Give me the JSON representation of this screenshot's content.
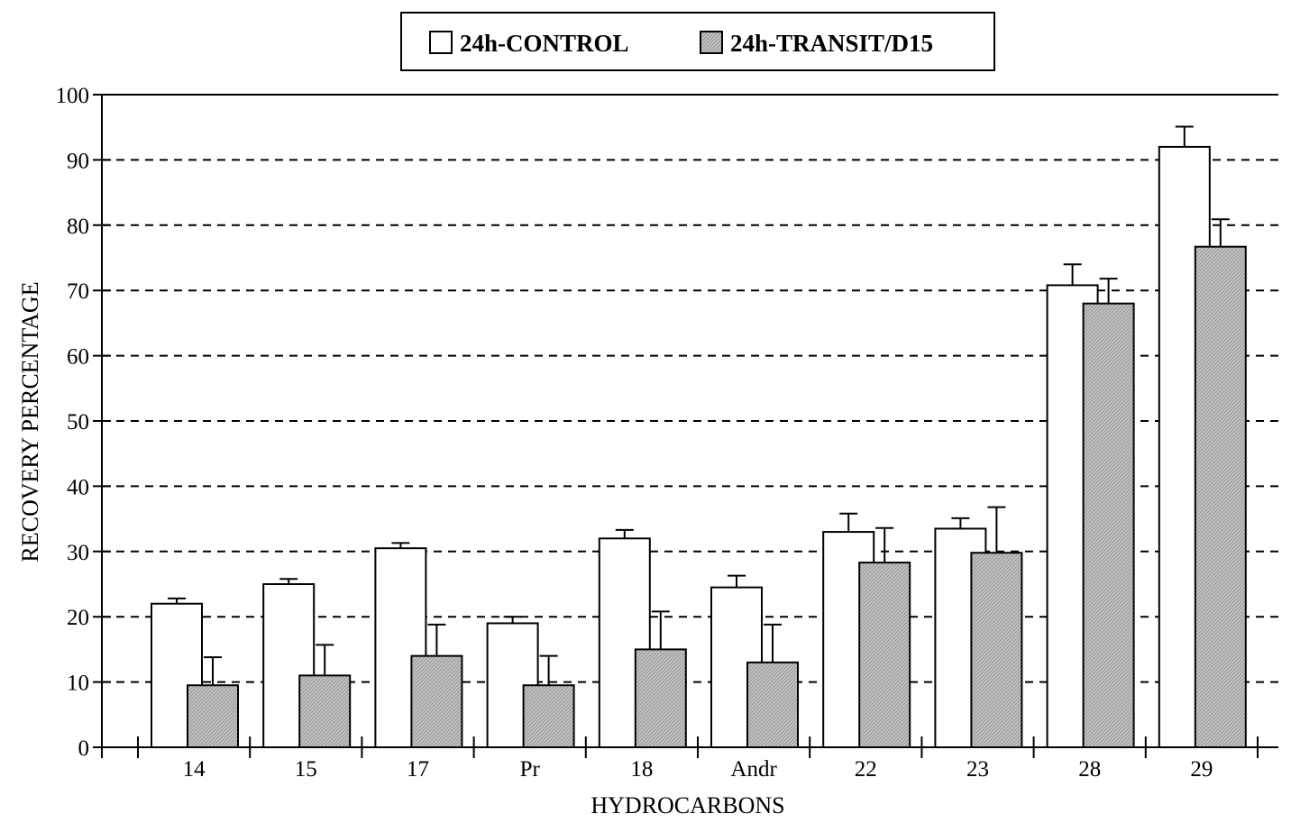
{
  "chart_data": {
    "type": "bar",
    "categories": [
      "14",
      "15",
      "17",
      "Pr",
      "18",
      "Andr",
      "22",
      "23",
      "28",
      "29"
    ],
    "series": [
      {
        "name": "24h-CONTROL",
        "values": [
          22.0,
          25.0,
          30.5,
          19.0,
          32.0,
          24.5,
          33.0,
          33.5,
          70.8,
          92.0
        ],
        "errors": [
          0.8,
          0.8,
          0.8,
          1.0,
          1.3,
          1.8,
          2.8,
          1.6,
          3.2,
          3.1
        ],
        "color": "#ffffff"
      },
      {
        "name": "24h-TRANSIT/D15",
        "values": [
          9.5,
          11.0,
          14.0,
          9.5,
          15.0,
          13.0,
          28.3,
          29.8,
          68.0,
          76.7
        ],
        "errors": [
          4.3,
          4.7,
          4.8,
          4.5,
          5.8,
          5.8,
          5.3,
          7.0,
          3.8,
          4.2
        ],
        "color": "#bdbdbd"
      }
    ],
    "title": "",
    "xlabel": "HYDROCARBONS",
    "ylabel": "RECOVERY PERCENTAGE",
    "ylim": [
      0,
      100
    ],
    "yticks": [
      0,
      10,
      20,
      30,
      40,
      50,
      60,
      70,
      80,
      90,
      100
    ],
    "grid": "horizontal-dashed",
    "legend_position": "top-center"
  }
}
